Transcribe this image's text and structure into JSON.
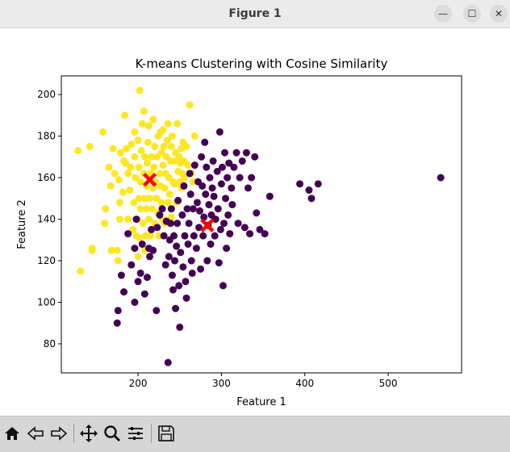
{
  "window": {
    "title": "Figure 1",
    "buttons": {
      "minimize_icon": "minimize-icon",
      "maximize_icon": "maximize-icon",
      "close_icon": "close-icon"
    }
  },
  "toolbar": {
    "items": [
      "home-icon",
      "back-icon",
      "forward-icon",
      "pan-icon",
      "zoom-icon",
      "configure-subplots-icon",
      "save-icon"
    ]
  },
  "chart_data": {
    "type": "scatter",
    "title": "K-means Clustering with Cosine Similarity",
    "xlabel": "Feature 1",
    "ylabel": "Feature 2",
    "xlim": [
      108,
      588
    ],
    "ylim": [
      66,
      209
    ],
    "xticks": [
      200,
      300,
      400,
      500
    ],
    "yticks": [
      80,
      100,
      120,
      140,
      160,
      180,
      200
    ],
    "grid": false,
    "colors": {
      "cluster_1": "#fde725",
      "cluster_0": "#440154",
      "centroid": "#ff0000"
    },
    "series": [
      {
        "points": [
          [
            128,
            173
          ],
          [
            142,
            175
          ],
          [
            131,
            115
          ],
          [
            145,
            126
          ],
          [
            145,
            125
          ],
          [
            158,
            182
          ],
          [
            160,
            138
          ],
          [
            161,
            145
          ],
          [
            165,
            165
          ],
          [
            167,
            156
          ],
          [
            168,
            125
          ],
          [
            170,
            174
          ],
          [
            172,
            162
          ],
          [
            175,
            125
          ],
          [
            176,
            120
          ],
          [
            177,
            159
          ],
          [
            178,
            148
          ],
          [
            178,
            140
          ],
          [
            179,
            172
          ],
          [
            182,
            153
          ],
          [
            183,
            168
          ],
          [
            184,
            190
          ],
          [
            185,
            167
          ],
          [
            186,
            174
          ],
          [
            188,
            162
          ],
          [
            188,
            140
          ],
          [
            190,
            154
          ],
          [
            191,
            165
          ],
          [
            192,
            176
          ],
          [
            194,
            135
          ],
          [
            195,
            148
          ],
          [
            196,
            170
          ],
          [
            196,
            182
          ],
          [
            197,
            160
          ],
          [
            198,
            132
          ],
          [
            199,
            140
          ],
          [
            200,
            178
          ],
          [
            200,
            122
          ],
          [
            201,
            150
          ],
          [
            201,
            165
          ],
          [
            202,
            202
          ],
          [
            202,
            131
          ],
          [
            203,
            145
          ],
          [
            203,
            158
          ],
          [
            204,
            173
          ],
          [
            205,
            186
          ],
          [
            206,
            138
          ],
          [
            207,
            162
          ],
          [
            207,
            192
          ],
          [
            208,
            125
          ],
          [
            208,
            150
          ],
          [
            208,
            170
          ],
          [
            209,
            132
          ],
          [
            210,
            145
          ],
          [
            210,
            156
          ],
          [
            211,
            167
          ],
          [
            212,
            177
          ],
          [
            213,
            140
          ],
          [
            213,
            185
          ],
          [
            214,
            150
          ],
          [
            215,
            132
          ],
          [
            215,
            162
          ],
          [
            216,
            170
          ],
          [
            217,
            145
          ],
          [
            218,
            155
          ],
          [
            218,
            188
          ],
          [
            219,
            165
          ],
          [
            220,
            138
          ],
          [
            220,
            175
          ],
          [
            221,
            158
          ],
          [
            222,
            150
          ],
          [
            223,
            170
          ],
          [
            224,
            143
          ],
          [
            224,
            180
          ],
          [
            225,
            132
          ],
          [
            226,
            162
          ],
          [
            227,
            182
          ],
          [
            227,
            156
          ],
          [
            228,
            172
          ],
          [
            228,
            148
          ],
          [
            229,
            140
          ],
          [
            230,
            166
          ],
          [
            230,
            183
          ],
          [
            231,
            175
          ],
          [
            232,
            155
          ],
          [
            232,
            138
          ],
          [
            233,
            162
          ],
          [
            234,
            170
          ],
          [
            235,
            178
          ],
          [
            236,
            148
          ],
          [
            236,
            186
          ],
          [
            237,
            160
          ],
          [
            238,
            152
          ],
          [
            239,
            168
          ],
          [
            240,
            141
          ],
          [
            240,
            175
          ],
          [
            241,
            180
          ],
          [
            242,
            158
          ],
          [
            243,
            168
          ],
          [
            244,
            157
          ],
          [
            245,
            172
          ],
          [
            246,
            148
          ],
          [
            247,
            186
          ],
          [
            248,
            163
          ],
          [
            249,
            170
          ],
          [
            250,
            158
          ],
          [
            251,
            167
          ],
          [
            252,
            155
          ],
          [
            252,
            174
          ],
          [
            253,
            162
          ],
          [
            254,
            177
          ],
          [
            255,
            168
          ],
          [
            256,
            160
          ],
          [
            258,
            175
          ],
          [
            260,
            166
          ],
          [
            262,
            195
          ],
          [
            264,
            162
          ],
          [
            266,
            158
          ],
          [
            268,
            180
          ]
        ]
      },
      {
        "points": [
          [
            175,
            90
          ],
          [
            176,
            96
          ],
          [
            180,
            113
          ],
          [
            183,
            105
          ],
          [
            188,
            133
          ],
          [
            192,
            118
          ],
          [
            196,
            100
          ],
          [
            196,
            126
          ],
          [
            198,
            140
          ],
          [
            200,
            110
          ],
          [
            203,
            114
          ],
          [
            205,
            128
          ],
          [
            208,
            104
          ],
          [
            211,
            112
          ],
          [
            213,
            126
          ],
          [
            214,
            122
          ],
          [
            216,
            135
          ],
          [
            218,
            125
          ],
          [
            222,
            96
          ],
          [
            223,
            136
          ],
          [
            226,
            142
          ],
          [
            229,
            145
          ],
          [
            231,
            132
          ],
          [
            233,
            118
          ],
          [
            234,
            139
          ],
          [
            236,
            71
          ],
          [
            237,
            122
          ],
          [
            238,
            130
          ],
          [
            239,
            138
          ],
          [
            240,
            145
          ],
          [
            241,
            113
          ],
          [
            242,
            106
          ],
          [
            243,
            132
          ],
          [
            244,
            120
          ],
          [
            245,
            97
          ],
          [
            246,
            127
          ],
          [
            247,
            138
          ],
          [
            248,
            149
          ],
          [
            249,
            108
          ],
          [
            250,
            88
          ],
          [
            251,
            124
          ],
          [
            253,
            142
          ],
          [
            254,
            117
          ],
          [
            255,
            156
          ],
          [
            256,
            132
          ],
          [
            257,
            110
          ],
          [
            258,
            102
          ],
          [
            259,
            145
          ],
          [
            260,
            128
          ],
          [
            261,
            138
          ],
          [
            262,
            162
          ],
          [
            263,
            152
          ],
          [
            264,
            120
          ],
          [
            265,
            114
          ],
          [
            266,
            145
          ],
          [
            267,
            132
          ],
          [
            268,
            166
          ],
          [
            270,
            126
          ],
          [
            271,
            148
          ],
          [
            272,
            158
          ],
          [
            273,
            136
          ],
          [
            274,
            144
          ],
          [
            275,
            116
          ],
          [
            276,
            170
          ],
          [
            277,
            156
          ],
          [
            278,
            132
          ],
          [
            279,
            141
          ],
          [
            280,
            177
          ],
          [
            281,
            152
          ],
          [
            282,
            165
          ],
          [
            283,
            120
          ],
          [
            284,
            137
          ],
          [
            285,
            147
          ],
          [
            286,
            160
          ],
          [
            287,
            128
          ],
          [
            288,
            142
          ],
          [
            289,
            155
          ],
          [
            290,
            168
          ],
          [
            291,
            151
          ],
          [
            292,
            132
          ],
          [
            293,
            140
          ],
          [
            295,
            163
          ],
          [
            296,
            145
          ],
          [
            297,
            119
          ],
          [
            298,
            182
          ],
          [
            299,
            135
          ],
          [
            300,
            157
          ],
          [
            301,
            165
          ],
          [
            302,
            108
          ],
          [
            303,
            138
          ],
          [
            304,
            172
          ],
          [
            305,
            150
          ],
          [
            306,
            126
          ],
          [
            307,
            160
          ],
          [
            308,
            142
          ],
          [
            309,
            167
          ],
          [
            310,
            133
          ],
          [
            312,
            155
          ],
          [
            313,
            147
          ],
          [
            315,
            165
          ],
          [
            318,
            172
          ],
          [
            320,
            138
          ],
          [
            322,
            160
          ],
          [
            325,
            168
          ],
          [
            328,
            136
          ],
          [
            330,
            172
          ],
          [
            332,
            155
          ],
          [
            334,
            133
          ],
          [
            336,
            160
          ],
          [
            340,
            170
          ],
          [
            342,
            143
          ],
          [
            346,
            135
          ],
          [
            352,
            133
          ],
          [
            358,
            151
          ],
          [
            394,
            157
          ],
          [
            405,
            154
          ],
          [
            408,
            150
          ],
          [
            416,
            157
          ],
          [
            563,
            160
          ]
        ]
      }
    ],
    "centroids": [
      [
        214,
        159
      ],
      [
        283,
        137
      ]
    ]
  }
}
